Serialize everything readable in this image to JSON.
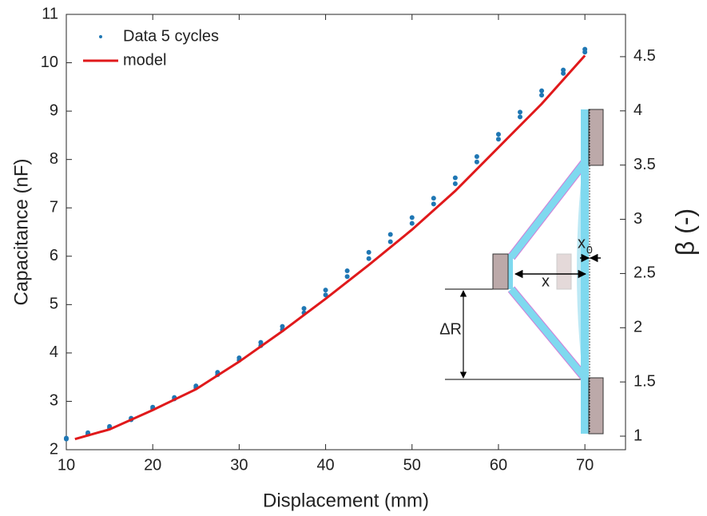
{
  "chart_data": {
    "type": "scatter",
    "x_label": "Displacement (mm)",
    "y_label": "Capacitance (nF)",
    "y2_label": "β (-)",
    "xlim": [
      10,
      74.7
    ],
    "ylim": [
      2,
      11
    ],
    "y2lim": [
      0.875,
      4.89
    ],
    "xticks": [
      10,
      20,
      30,
      40,
      50,
      60,
      70
    ],
    "yticks": [
      2,
      3,
      4,
      5,
      6,
      7,
      8,
      9,
      10,
      11
    ],
    "y2ticks": [
      1,
      1.5,
      2,
      2.5,
      3,
      3.5,
      4,
      4.5
    ],
    "legend": "upper left",
    "series": [
      {
        "name": "Data 5 cycles",
        "color": "#1f77b4",
        "kind": "points",
        "x": [
          10,
          12.5,
          15,
          17.5,
          20,
          22.5,
          25,
          27.5,
          30,
          32.5,
          35,
          37.5,
          40,
          42.5,
          45,
          47.5,
          50,
          52.5,
          55,
          57.5,
          60,
          62.5,
          65,
          67.5,
          70,
          70,
          67.5,
          65,
          62.5,
          60,
          57.5,
          55,
          52.5,
          50,
          47.5,
          45,
          42.5,
          40,
          37.5,
          35,
          32.5,
          30,
          27.5,
          25,
          22.5,
          20,
          17.5,
          15,
          12.5,
          10
        ],
        "values": [
          2.22,
          2.32,
          2.45,
          2.62,
          2.85,
          3.05,
          3.28,
          3.55,
          3.85,
          4.15,
          4.48,
          4.83,
          5.2,
          5.58,
          5.95,
          6.3,
          6.68,
          7.08,
          7.5,
          7.95,
          8.42,
          8.88,
          9.33,
          9.78,
          10.22,
          10.28,
          9.85,
          9.42,
          8.98,
          8.52,
          8.06,
          7.62,
          7.2,
          6.8,
          6.45,
          6.08,
          5.7,
          5.3,
          4.92,
          4.55,
          4.22,
          3.9,
          3.6,
          3.32,
          3.08,
          2.88,
          2.65,
          2.48,
          2.35,
          2.24
        ]
      },
      {
        "name": "model",
        "color": "#e0191b",
        "kind": "line",
        "x": [
          11,
          15,
          20,
          25,
          30,
          35,
          40,
          45,
          50,
          55,
          60,
          65,
          70
        ],
        "values": [
          2.22,
          2.42,
          2.82,
          3.25,
          3.82,
          4.45,
          5.12,
          5.82,
          6.55,
          7.35,
          8.25,
          9.15,
          10.15
        ]
      }
    ],
    "annotations": {
      "delta_r": "ΔR",
      "x": "x",
      "x0": {
        "label": "x",
        "subscript": "0"
      }
    }
  }
}
